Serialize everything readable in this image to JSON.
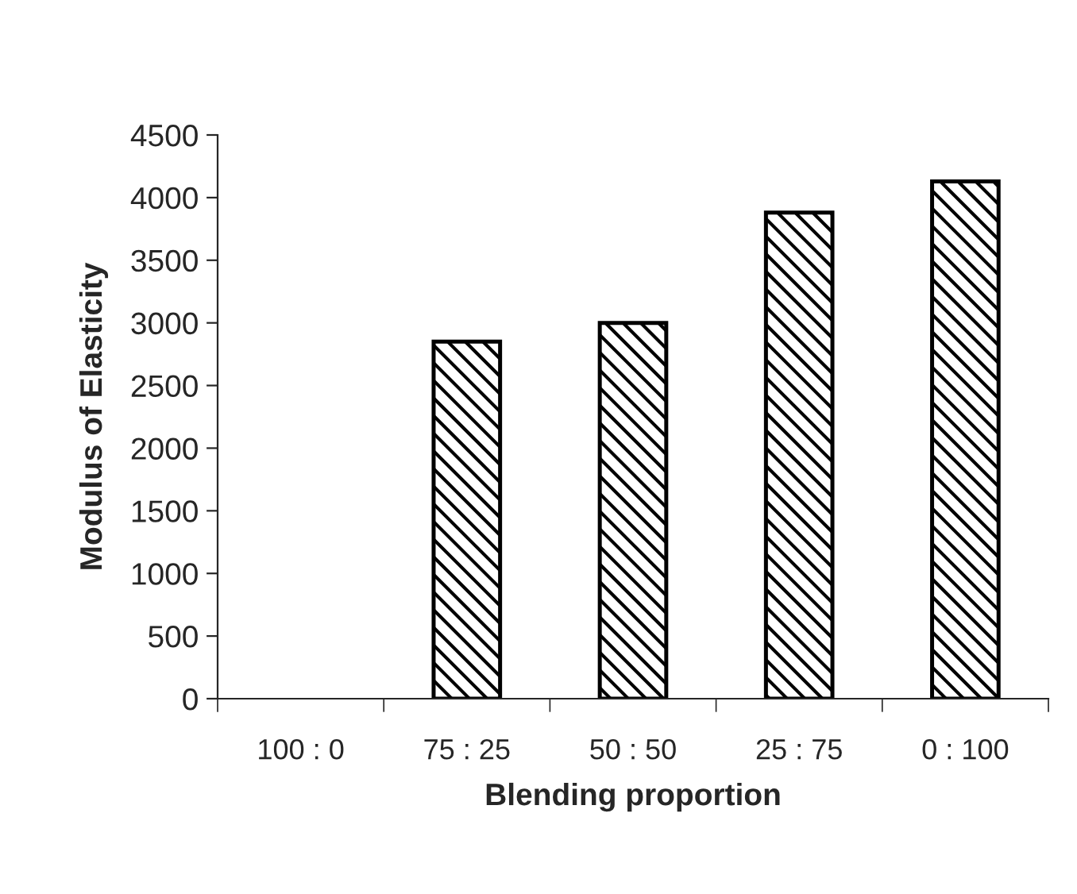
{
  "chart_data": {
    "type": "bar",
    "xlabel": "Blending proportion",
    "ylabel": "Modulus of Elasticity",
    "categories": [
      "100 : 0",
      "75 : 25",
      "50 : 50",
      "25 : 75",
      "0 : 100"
    ],
    "values": [
      null,
      2850,
      3000,
      3880,
      4130
    ],
    "color": "#000000",
    "ylim": [
      0,
      4500
    ],
    "yticks": [
      0,
      500,
      1000,
      1500,
      2000,
      2500,
      3000,
      3500,
      4000,
      4500
    ],
    "grid": false,
    "legend": false
  }
}
